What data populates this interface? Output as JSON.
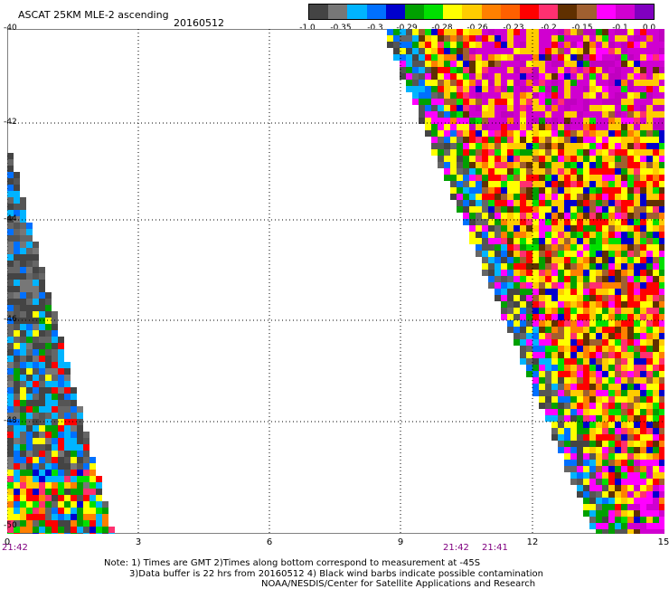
{
  "header": {
    "title": "ASCAT 25KM MLE-2 ascending",
    "date": "20160512"
  },
  "legend": {
    "colors": [
      "#444444",
      "#777777",
      "#00b4ff",
      "#0070ff",
      "#0000cd",
      "#00a000",
      "#00e000",
      "#ffff00",
      "#ffcc00",
      "#ff8000",
      "#ff6000",
      "#ff0000",
      "#ff3070",
      "#603000",
      "#a06030",
      "#ff00ff",
      "#d000d0",
      "#8000c0"
    ],
    "labels": [
      "-1.0",
      "-0.35",
      "-0.3",
      "-0.29",
      "-0.28",
      "-0.26",
      "-0.23",
      "-0.2",
      "-0.15",
      "-0.1",
      "0.0"
    ]
  },
  "axes": {
    "y_ticks": [
      "-40",
      "-42",
      "-44",
      "-46",
      "-48",
      "-50"
    ],
    "x_ticks": [
      "0",
      "3",
      "6",
      "9",
      "12",
      "15"
    ]
  },
  "times": [
    "21:42",
    "21:42",
    "21:41"
  ],
  "notes": [
    "Note: 1) Times are GMT 2)Times along bottom correspond to measurement at -45S",
    "3)Data buffer is 22 hrs from 20160512 4) Black wind barbs indicate possible contamination",
    "NOAA/NESDIS/Center for Satellite Applications and Research"
  ],
  "swaths": [
    {
      "name": "left-swath",
      "description_palette": [
        "#444444",
        "#777777",
        "#00b4ff",
        "#0070ff",
        "#ff0000",
        "#ffff00",
        "#00a000"
      ]
    },
    {
      "name": "right-swath",
      "description_palette": [
        "#ffff00",
        "#ffcc00",
        "#ff8000",
        "#ff0000",
        "#ff3070",
        "#603000",
        "#00a000",
        "#0000cd",
        "#ff00ff",
        "#d000d0"
      ]
    }
  ]
}
